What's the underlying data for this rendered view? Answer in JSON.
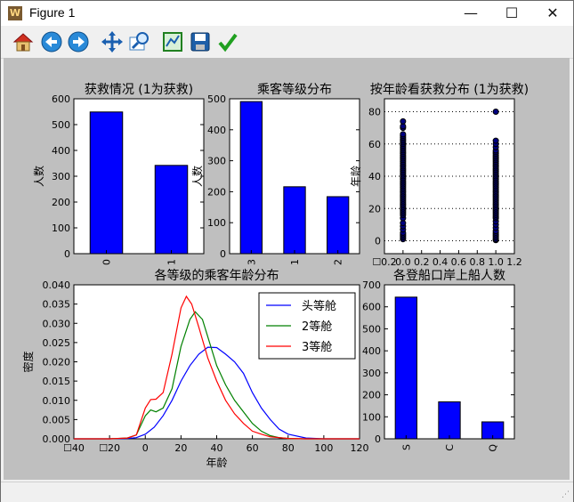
{
  "window": {
    "title": "Figure 1",
    "controls": {
      "minimize": "—",
      "maximize": "☐",
      "close": "✕"
    }
  },
  "toolbar": {
    "tools": [
      "home-icon",
      "back-arrow-icon",
      "forward-arrow-icon",
      "pan-icon",
      "zoom-icon",
      "subplots-icon",
      "save-icon",
      "check-icon"
    ]
  },
  "colors": {
    "bar": "#0000ff",
    "first_class": "#0000ff",
    "second_class": "#008000",
    "third_class": "#ff0000",
    "figure_bg": "#bfbfbf"
  },
  "chart_data": [
    {
      "type": "bar",
      "title": "获救情况 (1为获救)",
      "ylabel": "人数",
      "categories": [
        "0",
        "1"
      ],
      "values": [
        549,
        342
      ],
      "ylim": [
        0,
        600
      ],
      "yticks": [
        "0",
        "100",
        "200",
        "300",
        "400",
        "500",
        "600"
      ]
    },
    {
      "type": "bar",
      "title": "乘客等级分布",
      "ylabel": "人数",
      "categories": [
        "3",
        "1",
        "2"
      ],
      "values": [
        491,
        216,
        184
      ],
      "ylim": [
        0,
        500
      ],
      "yticks": [
        "0",
        "100",
        "200",
        "300",
        "400",
        "500"
      ]
    },
    {
      "type": "scatter",
      "title": "按年龄看获救分布 (1为获救)",
      "ylabel": "年龄",
      "xlim": [
        -0.2,
        1.2
      ],
      "ylim": [
        -8,
        88
      ],
      "xticks": [
        "☐0.2",
        "0.0",
        "0.2",
        "0.4",
        "0.6",
        "0.8",
        "1.0",
        "1.2"
      ],
      "yticks": [
        "0",
        "20",
        "40",
        "60",
        "80"
      ],
      "grid": "y",
      "series": [
        {
          "x": 0,
          "y": [
            1,
            2,
            3,
            4,
            5,
            7,
            9,
            11,
            14,
            16,
            17,
            18,
            19,
            20,
            21,
            22,
            23,
            24,
            25,
            26,
            27,
            28,
            29,
            30,
            31,
            32,
            33,
            34,
            35,
            36,
            37,
            38,
            39,
            40,
            41,
            42,
            43,
            44,
            45,
            46,
            47,
            48,
            49,
            50,
            51,
            52,
            53,
            54,
            55,
            56,
            57,
            58,
            59,
            60,
            61,
            62,
            63,
            64,
            65,
            66,
            70,
            71,
            74
          ]
        },
        {
          "x": 1,
          "y": [
            0.4,
            1,
            2,
            3,
            4,
            5,
            6,
            8,
            10,
            12,
            14,
            15,
            16,
            17,
            18,
            19,
            20,
            21,
            22,
            23,
            24,
            25,
            26,
            27,
            28,
            29,
            30,
            31,
            32,
            33,
            34,
            35,
            36,
            37,
            38,
            39,
            40,
            41,
            42,
            43,
            44,
            45,
            46,
            47,
            48,
            49,
            50,
            51,
            52,
            53,
            54,
            55,
            56,
            58,
            60,
            62,
            80
          ]
        }
      ]
    },
    {
      "type": "line",
      "title": "各等级的乘客年龄分布",
      "xlabel": "年龄",
      "ylabel": "密度",
      "xlim": [
        -40,
        120
      ],
      "ylim": [
        0,
        0.04
      ],
      "xticks": [
        "☐40",
        "☐20",
        "0",
        "20",
        "40",
        "60",
        "80",
        "100",
        "120"
      ],
      "yticks": [
        "0.000",
        "0.005",
        "0.010",
        "0.015",
        "0.020",
        "0.025",
        "0.030",
        "0.035",
        "0.040"
      ],
      "legend": "top-right",
      "series": [
        {
          "name": "头等舱",
          "color": "#0000ff",
          "x": [
            -40,
            -20,
            -10,
            -5,
            0,
            5,
            10,
            15,
            20,
            25,
            30,
            35,
            40,
            45,
            50,
            55,
            60,
            65,
            70,
            75,
            80,
            90,
            100,
            120
          ],
          "y": [
            0,
            0,
            0.0001,
            0.0003,
            0.0012,
            0.003,
            0.006,
            0.01,
            0.015,
            0.019,
            0.022,
            0.0238,
            0.0237,
            0.022,
            0.02,
            0.017,
            0.012,
            0.008,
            0.005,
            0.0025,
            0.0012,
            0.0002,
            0,
            0
          ]
        },
        {
          "name": "2等舱",
          "color": "#008000",
          "x": [
            -40,
            -20,
            -10,
            -5,
            0,
            3,
            6,
            10,
            15,
            20,
            25,
            28,
            32,
            36,
            40,
            45,
            50,
            55,
            60,
            65,
            70,
            75,
            80,
            90,
            100,
            120
          ],
          "y": [
            0,
            0,
            0.0002,
            0.001,
            0.006,
            0.0075,
            0.007,
            0.008,
            0.013,
            0.024,
            0.031,
            0.033,
            0.031,
            0.025,
            0.019,
            0.014,
            0.01,
            0.007,
            0.004,
            0.002,
            0.0008,
            0.0003,
            0.0001,
            0,
            0,
            0
          ]
        },
        {
          "name": "3等舱",
          "color": "#ff0000",
          "x": [
            -40,
            -20,
            -10,
            -5,
            0,
            3,
            6,
            10,
            15,
            20,
            23,
            26,
            30,
            35,
            40,
            45,
            50,
            55,
            60,
            65,
            70,
            75,
            80,
            90,
            100,
            120
          ],
          "y": [
            0,
            0,
            0.0002,
            0.001,
            0.008,
            0.0102,
            0.0103,
            0.012,
            0.022,
            0.034,
            0.037,
            0.035,
            0.029,
            0.021,
            0.015,
            0.01,
            0.0065,
            0.004,
            0.002,
            0.0012,
            0.0005,
            0.0003,
            0.0001,
            0,
            0,
            0
          ]
        }
      ]
    },
    {
      "type": "bar",
      "title": "各登船口岸上船人数",
      "ylabel": "人数",
      "categories": [
        "S",
        "C",
        "Q"
      ],
      "values": [
        644,
        168,
        77
      ],
      "ylim": [
        0,
        700
      ],
      "yticks": [
        "0",
        "100",
        "200",
        "300",
        "400",
        "500",
        "600",
        "700"
      ]
    }
  ]
}
